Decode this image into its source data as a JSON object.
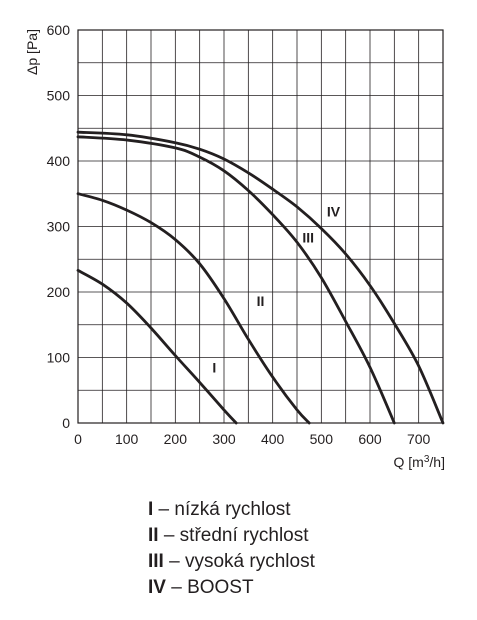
{
  "chart_data": {
    "type": "line",
    "ylabel": "Δp [Pa]",
    "xlabel_prefix": "Q [m",
    "xlabel_sup": "3",
    "xlabel_suffix": "/h]",
    "xlim": [
      0,
      750
    ],
    "ylim": [
      0,
      600
    ],
    "x_ticks": [
      0,
      100,
      200,
      300,
      400,
      500,
      600,
      700
    ],
    "y_ticks": [
      0,
      100,
      200,
      300,
      400,
      500,
      600
    ],
    "grid": true,
    "series": [
      {
        "name": "I",
        "x": [
          0,
          50,
          100,
          150,
          200,
          250,
          300,
          325
        ],
        "y": [
          233,
          212,
          183,
          145,
          103,
          62,
          20,
          0
        ]
      },
      {
        "name": "II",
        "x": [
          0,
          50,
          100,
          150,
          200,
          250,
          300,
          350,
          400,
          450,
          475
        ],
        "y": [
          350,
          340,
          325,
          306,
          280,
          243,
          190,
          128,
          70,
          20,
          0
        ]
      },
      {
        "name": "III",
        "x": [
          0,
          100,
          200,
          250,
          300,
          350,
          400,
          450,
          500,
          550,
          600,
          650
        ],
        "y": [
          437,
          432,
          420,
          406,
          385,
          355,
          318,
          276,
          222,
          155,
          85,
          0
        ]
      },
      {
        "name": "IV",
        "x": [
          0,
          100,
          200,
          250,
          300,
          350,
          400,
          450,
          500,
          550,
          600,
          650,
          700,
          750
        ],
        "y": [
          444,
          440,
          428,
          418,
          403,
          382,
          357,
          330,
          297,
          258,
          210,
          152,
          87,
          0
        ]
      }
    ],
    "curve_labels": [
      {
        "text": "I",
        "x": 280,
        "y": 85
      },
      {
        "text": "II",
        "x": 375,
        "y": 186
      },
      {
        "text": "III",
        "x": 473,
        "y": 283
      },
      {
        "text": "IV",
        "x": 525,
        "y": 323
      }
    ]
  },
  "legend": [
    {
      "key": "I",
      "text": " – nízká rychlost"
    },
    {
      "key": "II",
      "text": " – střední rychlost"
    },
    {
      "key": "III",
      "text": " – vysoká rychlost"
    },
    {
      "key": "IV",
      "text": " – BOOST"
    }
  ]
}
